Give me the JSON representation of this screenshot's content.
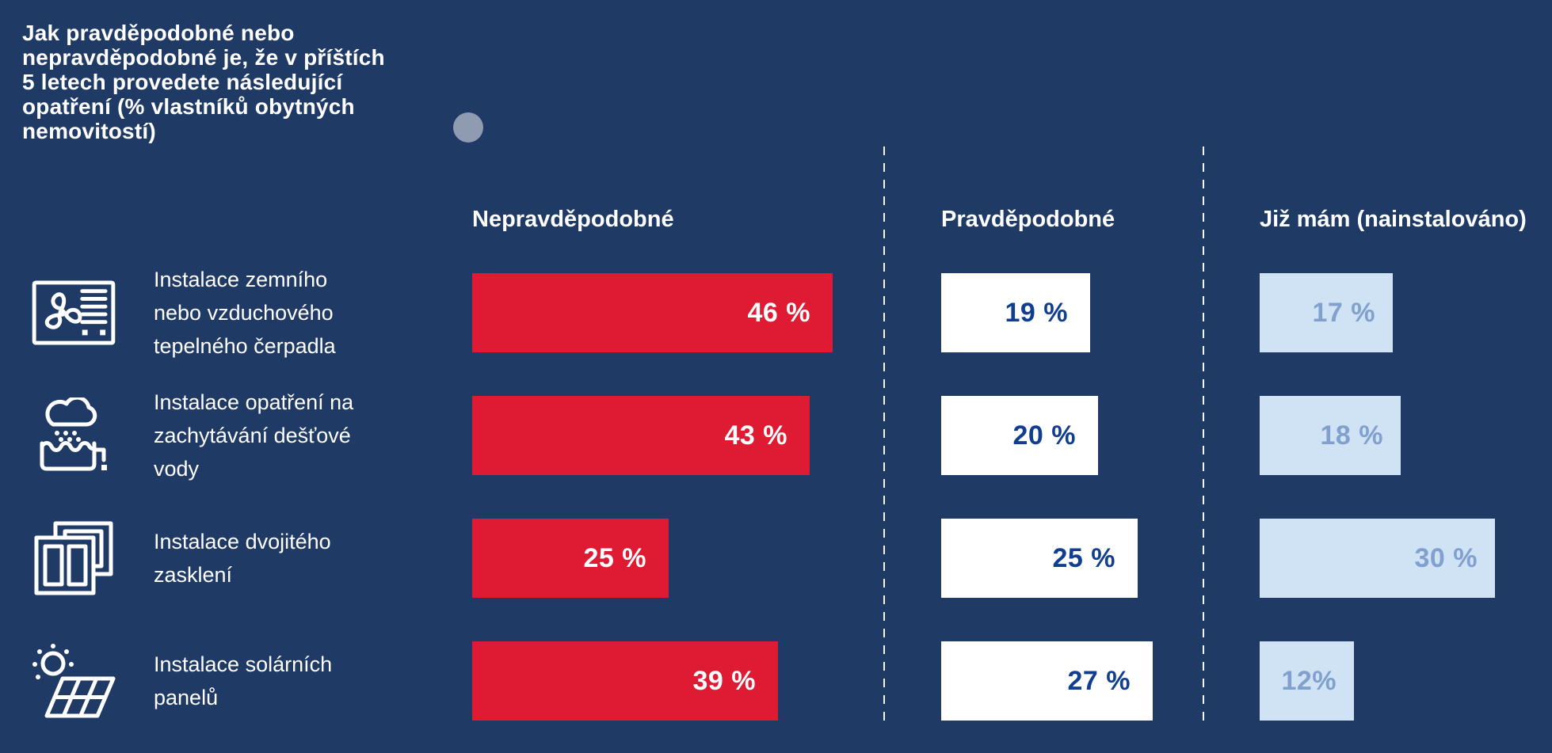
{
  "title": {
    "text": "Jak pravděpodobné nebo nepravděpodobné je, že v příštích 5 letech provedete následující opatření (% vlastníků obytných nemovitostí)",
    "lines": [
      "Jak pravděpodobné nebo",
      "nepravděpodobné je, že v příštích",
      "5 letech provedete následující",
      "opatření (% vlastníků obytných",
      "nemovitostí)"
    ]
  },
  "columns": [
    {
      "key": "unlikely",
      "label": "Nepravděpodobné"
    },
    {
      "key": "likely",
      "label": "Pravděpodobné"
    },
    {
      "key": "installed",
      "label": "Již mám (nainstalováno)"
    }
  ],
  "rows": [
    {
      "icon": "heat-pump-icon",
      "label": "Instalace zemního nebo vzduchového tepelného čerpadla",
      "label_lines": [
        "Instalace zemního",
        "nebo vzduchového",
        "tepelného čerpadla"
      ],
      "values": {
        "unlikely": 46,
        "likely": 19,
        "installed": 17
      },
      "display": {
        "unlikely": "46 %",
        "likely": "19 %",
        "installed": "17 %"
      }
    },
    {
      "icon": "rainwater-icon",
      "label": "Instalace opatření na zachytávání dešťové vody",
      "label_lines": [
        "Instalace opatření na",
        "zachytávání dešťové",
        "vody"
      ],
      "values": {
        "unlikely": 43,
        "likely": 20,
        "installed": 18
      },
      "display": {
        "unlikely": "43 %",
        "likely": "20 %",
        "installed": "18 %"
      }
    },
    {
      "icon": "double-glazing-icon",
      "label": "Instalace dvojitého zasklení",
      "label_lines": [
        "Instalace dvojitého",
        "zasklení"
      ],
      "values": {
        "unlikely": 25,
        "likely": 25,
        "installed": 30
      },
      "display": {
        "unlikely": "25 %",
        "likely": "25 %",
        "installed": "30 %"
      }
    },
    {
      "icon": "solar-panel-icon",
      "label": "Instalace solárních panelů",
      "label_lines": [
        "Instalace solárních",
        "panelů"
      ],
      "values": {
        "unlikely": 39,
        "likely": 27,
        "installed": 12
      },
      "display": {
        "unlikely": "39 %",
        "likely": "27 %",
        "installed": "12%"
      }
    }
  ],
  "colors": {
    "background": "#203a66",
    "bar_unlikely": "#df1b33",
    "bar_likely": "#ffffff",
    "bar_installed": "#cfe3f5",
    "value_on_red": "#ffffff",
    "value_on_white": "#123e8f",
    "value_on_lightblue": "#82a0ce",
    "text": "#ffffff",
    "divider": "#ffffff",
    "dot": "#8e9bb0"
  },
  "chart_data": {
    "type": "bar",
    "orientation": "horizontal",
    "unit": "%",
    "title": "Jak pravděpodobné nebo nepravděpodobné je, že v příštích 5 letech provedete následující opatření (% vlastníků obytných nemovitostí)",
    "categories": [
      "Instalace zemního nebo vzduchového tepelného čerpadla",
      "Instalace opatření na zachytávání dešťové vody",
      "Instalace dvojitého zasklení",
      "Instalace solárních panelů"
    ],
    "series": [
      {
        "name": "Nepravděpodobné",
        "values": [
          46,
          43,
          25,
          39
        ],
        "color": "#df1b33"
      },
      {
        "name": "Pravděpodobné",
        "values": [
          19,
          20,
          25,
          27
        ],
        "color": "#ffffff"
      },
      {
        "name": "Již mám (nainstalováno)",
        "values": [
          17,
          18,
          30,
          12
        ],
        "color": "#cfe3f5"
      }
    ],
    "xlim": [
      0,
      50
    ],
    "grid": false,
    "legend_position": "column-headers-top",
    "data_labels": "inside-end"
  }
}
